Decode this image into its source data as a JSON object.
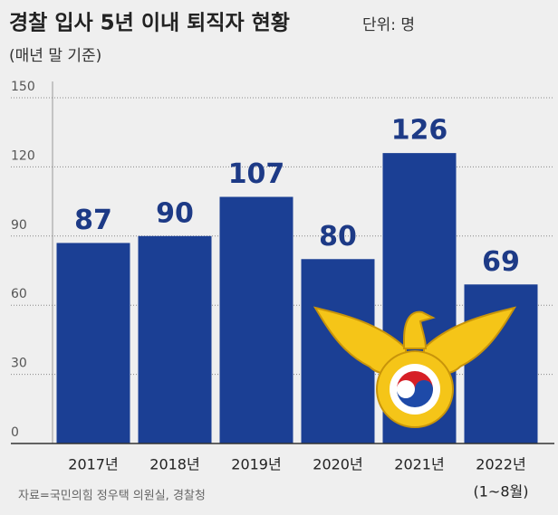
{
  "chart_data": {
    "type": "bar",
    "title": "경찰 입사 5년 이내 퇴직자 현황",
    "unit": "단위: 명",
    "subtitle": "(매년 말 기준)",
    "categories": [
      "2017년",
      "2018년",
      "2019년",
      "2020년",
      "2021년",
      "2022년"
    ],
    "category_note": "(1~8월)",
    "values": [
      87,
      90,
      107,
      80,
      126,
      69
    ],
    "color": "#1b3f94",
    "label_color": "#1d3a86",
    "ylim": [
      0,
      150
    ],
    "yticks": [
      0,
      30,
      60,
      90,
      120,
      150
    ],
    "grid": true,
    "source": "자료=국민의힘 정우택 의원실, 경찰청"
  }
}
